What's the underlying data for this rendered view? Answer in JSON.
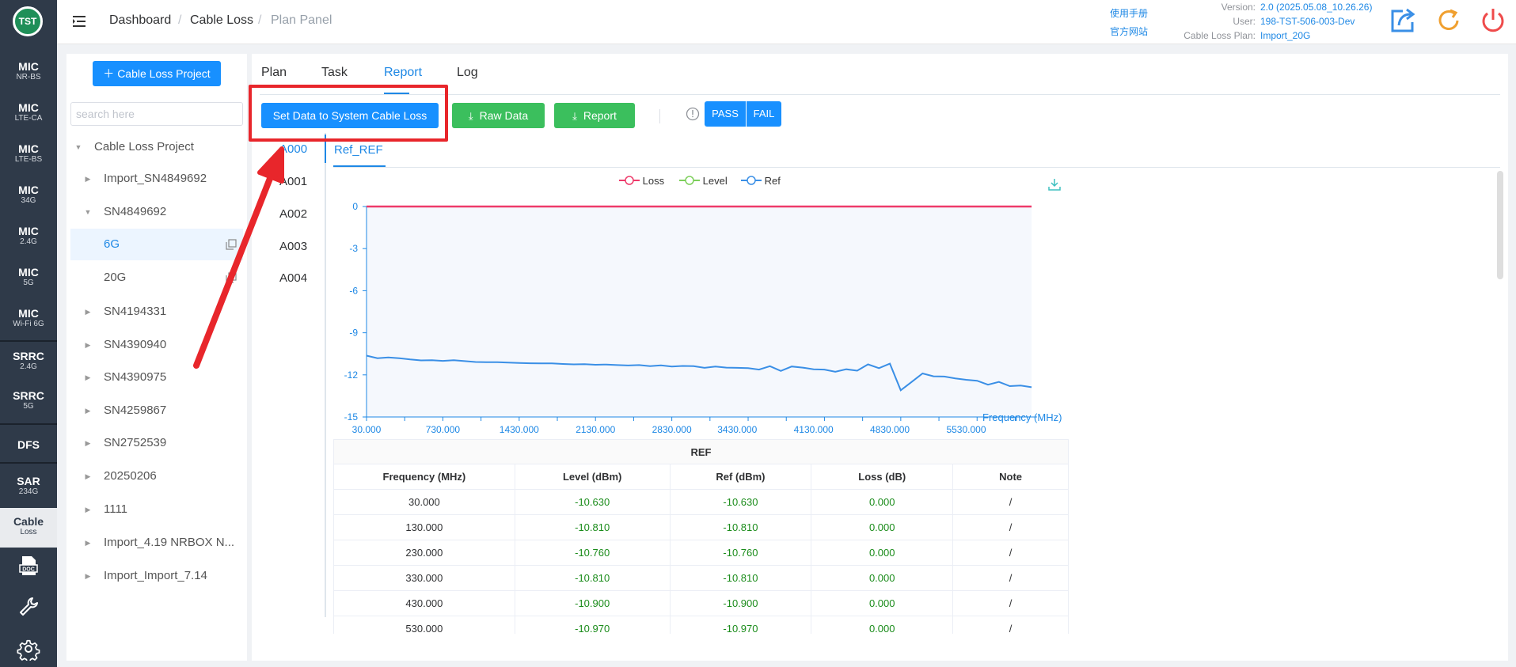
{
  "logo": {
    "text": "TST"
  },
  "rail": [
    {
      "line1": "MIC",
      "line2": "NR-BS"
    },
    {
      "line1": "MIC",
      "line2": "LTE-CA"
    },
    {
      "line1": "MIC",
      "line2": "LTE-BS"
    },
    {
      "line1": "MIC",
      "line2": "34G"
    },
    {
      "line1": "MIC",
      "line2": "2.4G"
    },
    {
      "line1": "MIC",
      "line2": "5G"
    },
    {
      "line1": "MIC",
      "line2": "Wi-Fi 6G"
    },
    {
      "line1": "SRRC",
      "line2": "2.4G"
    },
    {
      "line1": "SRRC",
      "line2": "5G"
    },
    {
      "line1": "DFS",
      "line2": ""
    },
    {
      "line1": "SAR",
      "line2": "234G"
    },
    {
      "line1": "Cable",
      "line2": "Loss"
    }
  ],
  "rail_icons": [
    "doc-icon",
    "wrench-icon",
    "gear-icon"
  ],
  "header": {
    "breadcrumb": [
      "Dashboard",
      "Cable Loss",
      "Plan Panel"
    ],
    "links": [
      "使用手册",
      "官方网站"
    ],
    "meta": [
      {
        "label": "Version:",
        "value": "2.0 (2025.05.08_10.26.26)"
      },
      {
        "label": "User:",
        "value": "198-TST-506-003-Dev"
      },
      {
        "label": "Cable Loss Plan:",
        "value": "Import_20G"
      }
    ]
  },
  "tree": {
    "add_button": "Cable Loss Project",
    "search_placeholder": "search here",
    "nodes": [
      {
        "label": "Cable Loss Project",
        "arrow": "down"
      },
      {
        "label": "Import_SN4849692",
        "arrow": "right"
      },
      {
        "label": "SN4849692",
        "arrow": "down"
      },
      {
        "label": "6G",
        "child": true,
        "selected": true
      },
      {
        "label": "20G",
        "child": true
      },
      {
        "label": "SN4194331",
        "arrow": "right"
      },
      {
        "label": "SN4390940",
        "arrow": "right"
      },
      {
        "label": "SN4390975",
        "arrow": "right"
      },
      {
        "label": "SN4259867",
        "arrow": "right"
      },
      {
        "label": "SN2752539",
        "arrow": "right"
      },
      {
        "label": "20250206",
        "arrow": "right"
      },
      {
        "label": "1111",
        "arrow": "right"
      },
      {
        "label": "Import_4.19 NRBOX N...",
        "arrow": "right"
      },
      {
        "label": "Import_Import_7.14",
        "arrow": "right"
      }
    ]
  },
  "main": {
    "tabs": [
      "Plan",
      "Task",
      "Report",
      "Log"
    ],
    "active_tab": "Report",
    "buttons": {
      "set_data": "Set Data to System Cable Loss",
      "raw_data": "Raw Data",
      "report": "Report",
      "pass": "PASS",
      "fail": "FAIL"
    },
    "vtabs": [
      "A000",
      "A001",
      "A002",
      "A003",
      "A004"
    ],
    "active_vtab": "A000",
    "subtab": "Ref_REF"
  },
  "colors": {
    "loss": "#ee3a6a",
    "level": "#7ccf5a",
    "ref": "#3a8fe6",
    "accent": "#1890ff",
    "green": "#3bbf5d",
    "highlight": "#e8262b"
  },
  "chart_data": {
    "type": "line",
    "legend": [
      "Loss",
      "Level",
      "Ref"
    ],
    "xlabel": "Frequency (MHz)",
    "ylabel": "",
    "xlim": [
      30,
      6180
    ],
    "ylim": [
      -15,
      0
    ],
    "yticks": [
      0,
      -3,
      -6,
      -9,
      -12,
      -15
    ],
    "xticks": [
      30,
      730,
      1430,
      2130,
      2830,
      3430,
      4130,
      4830,
      5530
    ],
    "xtick_labels": [
      "30.000",
      "730.000",
      "1430.000",
      "2130.000",
      "2830.000",
      "3430.000",
      "4130.000",
      "4830.000",
      "5530.000"
    ],
    "x": [
      30,
      130,
      230,
      330,
      430,
      530,
      630,
      730,
      830,
      930,
      1030,
      1130,
      1230,
      1330,
      1430,
      1530,
      1630,
      1730,
      1830,
      1930,
      2030,
      2130,
      2230,
      2330,
      2430,
      2530,
      2630,
      2730,
      2830,
      2930,
      3030,
      3130,
      3230,
      3330,
      3430,
      3530,
      3630,
      3730,
      3830,
      3930,
      4030,
      4130,
      4230,
      4330,
      4430,
      4530,
      4630,
      4730,
      4830,
      4930,
      5030,
      5130,
      5230,
      5330,
      5430,
      5530,
      5630,
      5730,
      5830,
      5930,
      6030,
      6130
    ],
    "series": [
      {
        "name": "Loss",
        "values": [
          0.0,
          0.0,
          0.0,
          0.0,
          0.0,
          0.0,
          0.0,
          0.0,
          0.0,
          0.0,
          0.0,
          0.0,
          0.0,
          0.0,
          0.0,
          0.0,
          0.0,
          0.0,
          0.0,
          0.0,
          0.0,
          0.0,
          0.0,
          0.0,
          0.0,
          0.0,
          0.0,
          0.0,
          0.0,
          0.0,
          0.0,
          0.0,
          0.0,
          0.0,
          0.0,
          0.0,
          0.0,
          0.0,
          0.0,
          0.0,
          0.0,
          0.0,
          0.0,
          0.0,
          0.0,
          0.0,
          0.0,
          0.0,
          0.0,
          0.0,
          0.0,
          0.0,
          0.0,
          0.0,
          0.0,
          0.0,
          0.0,
          0.0,
          0.0,
          0.0,
          0.0,
          0.0
        ]
      },
      {
        "name": "Ref",
        "values": [
          -10.63,
          -10.81,
          -10.76,
          -10.81,
          -10.9,
          -10.97,
          -10.95,
          -11.0,
          -10.95,
          -11.02,
          -11.08,
          -11.1,
          -11.1,
          -11.12,
          -11.15,
          -11.17,
          -11.18,
          -11.18,
          -11.22,
          -11.25,
          -11.24,
          -11.28,
          -11.26,
          -11.3,
          -11.33,
          -11.3,
          -11.38,
          -11.32,
          -11.4,
          -11.36,
          -11.38,
          -11.5,
          -11.4,
          -11.48,
          -11.5,
          -11.52,
          -11.62,
          -11.38,
          -11.72,
          -11.4,
          -11.48,
          -11.6,
          -11.62,
          -11.78,
          -11.6,
          -11.7,
          -11.25,
          -11.52,
          -11.2,
          -13.1,
          -12.5,
          -11.9,
          -12.1,
          -12.12,
          -12.25,
          -12.35,
          -12.42,
          -12.7,
          -12.5,
          -12.8,
          -12.76,
          -12.88
        ]
      }
    ]
  },
  "table": {
    "title": "REF",
    "columns": [
      "Frequency (MHz)",
      "Level (dBm)",
      "Ref (dBm)",
      "Loss (dB)",
      "Note"
    ],
    "rows": [
      [
        "30.000",
        "-10.630",
        "-10.630",
        "0.000",
        "/"
      ],
      [
        "130.000",
        "-10.810",
        "-10.810",
        "0.000",
        "/"
      ],
      [
        "230.000",
        "-10.760",
        "-10.760",
        "0.000",
        "/"
      ],
      [
        "330.000",
        "-10.810",
        "-10.810",
        "0.000",
        "/"
      ],
      [
        "430.000",
        "-10.900",
        "-10.900",
        "0.000",
        "/"
      ],
      [
        "530.000",
        "-10.970",
        "-10.970",
        "0.000",
        "/"
      ]
    ]
  }
}
